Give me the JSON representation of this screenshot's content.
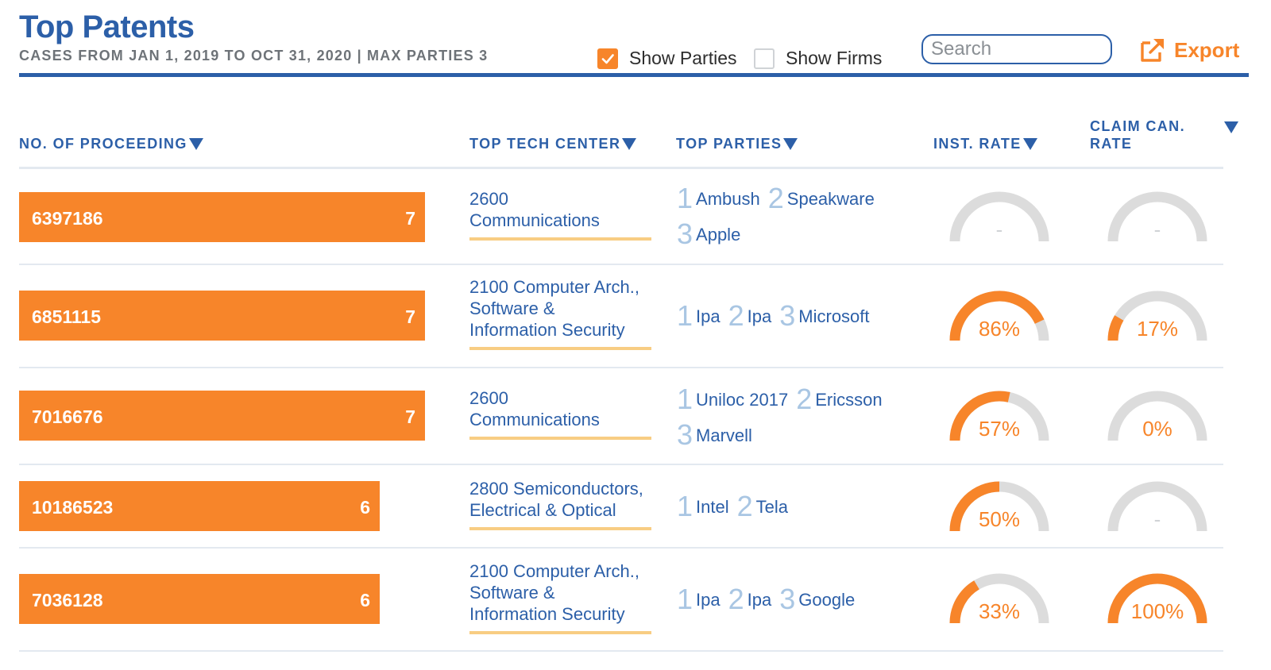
{
  "header": {
    "title": "Top Patents",
    "subtitle": "CASES FROM JAN 1, 2019 TO OCT 31, 2020 | MAX PARTIES 3",
    "show_parties_label": "Show Parties",
    "show_parties_checked": true,
    "show_firms_label": "Show Firms",
    "show_firms_checked": false,
    "search_placeholder": "Search",
    "search_value": "",
    "export_label": "Export"
  },
  "columns": {
    "proceeding": "NO. OF PROCEEDING",
    "tech_center": "TOP TECH CENTER",
    "parties": "TOP PARTIES",
    "inst_rate": "INST. RATE",
    "claim_can_rate": "CLAIM CAN. RATE"
  },
  "colors": {
    "accent": "#f7852a",
    "primary": "#2c5fa8",
    "gauge_track": "#dcdcdc",
    "party_number": "#a9c6e3",
    "tech_underline": "#f8cd83"
  },
  "rows": [
    {
      "patent": "6397186",
      "count": "7",
      "tech_center": [
        "2600",
        "Communications"
      ],
      "parties": [
        {
          "n": "1",
          "name": "Ambush"
        },
        {
          "n": "2",
          "name": "Speakware"
        },
        {
          "n": "3",
          "name": "Apple"
        }
      ],
      "inst_rate": null,
      "inst_rate_label": "-",
      "claim_rate": null,
      "claim_rate_label": "-"
    },
    {
      "patent": "6851115",
      "count": "7",
      "tech_center": [
        "2100 Computer Arch.,",
        "Software &",
        "Information Security"
      ],
      "parties": [
        {
          "n": "1",
          "name": "Ipa"
        },
        {
          "n": "2",
          "name": "Ipa"
        },
        {
          "n": "3",
          "name": "Microsoft"
        }
      ],
      "inst_rate": 0.86,
      "inst_rate_label": "86%",
      "claim_rate": 0.17,
      "claim_rate_label": "17%"
    },
    {
      "patent": "7016676",
      "count": "7",
      "tech_center": [
        "2600",
        "Communications"
      ],
      "parties": [
        {
          "n": "1",
          "name": "Uniloc 2017"
        },
        {
          "n": "2",
          "name": "Ericsson"
        },
        {
          "n": "3",
          "name": "Marvell"
        }
      ],
      "inst_rate": 0.57,
      "inst_rate_label": "57%",
      "claim_rate": 0,
      "claim_rate_label": "0%"
    },
    {
      "patent": "10186523",
      "count": "6",
      "tech_center": [
        "2800 Semiconductors,",
        "Electrical & Optical"
      ],
      "parties": [
        {
          "n": "1",
          "name": "Intel"
        },
        {
          "n": "2",
          "name": "Tela"
        }
      ],
      "inst_rate": 0.5,
      "inst_rate_label": "50%",
      "claim_rate": null,
      "claim_rate_label": "-"
    },
    {
      "patent": "7036128",
      "count": "6",
      "tech_center": [
        "2100 Computer Arch.,",
        "Software &",
        "Information Security"
      ],
      "parties": [
        {
          "n": "1",
          "name": "Ipa"
        },
        {
          "n": "2",
          "name": "Ipa"
        },
        {
          "n": "3",
          "name": "Google"
        }
      ],
      "inst_rate": 0.33,
      "inst_rate_label": "33%",
      "claim_rate": 1,
      "claim_rate_label": "100%"
    }
  ]
}
